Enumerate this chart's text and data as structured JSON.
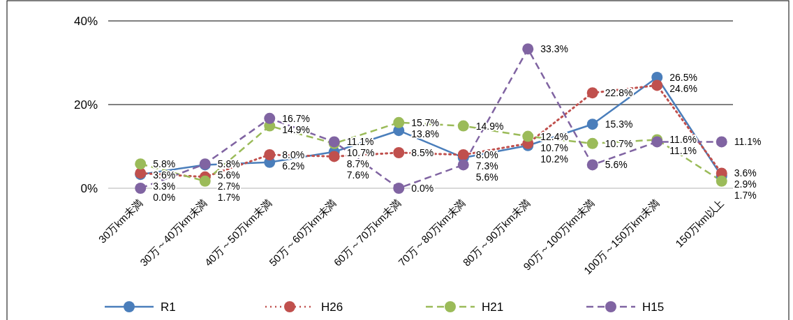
{
  "chart_data": {
    "type": "line",
    "categories": [
      "30万km未満",
      "30万～40万km未満",
      "40万～50万km未満",
      "50万～60万km未満",
      "60万～70万km未満",
      "70万～80万km未満",
      "80万～90万km未満",
      "90万～100万km未満",
      "100万～150万km未満",
      "150万km以上"
    ],
    "series": [
      {
        "name": "R1",
        "color": "#4a7ebb",
        "line_style": "solid",
        "values": [
          3.3,
          5.6,
          6.2,
          8.7,
          13.8,
          7.3,
          10.2,
          15.3,
          26.5,
          2.9
        ],
        "value_labels": [
          "3.3%",
          "5.6%",
          "6.2%",
          "8.7%",
          "13.8%",
          "7.3%",
          "10.2%",
          "15.3%",
          "26.5%",
          "2.9%"
        ]
      },
      {
        "name": "H26",
        "color": "#c0504d",
        "line_style": "dotted",
        "values": [
          3.6,
          2.7,
          8.0,
          7.6,
          8.5,
          8.0,
          10.7,
          22.8,
          24.6,
          3.6
        ],
        "value_labels": [
          "3.6%",
          "2.7%",
          "8.0%",
          "7.6%",
          "8.5%",
          "8.0%",
          "10.7%",
          "22.8%",
          "24.6%",
          "3.6%"
        ]
      },
      {
        "name": "H21",
        "color": "#9bbb59",
        "line_style": "dashed",
        "values": [
          5.8,
          1.7,
          14.9,
          10.7,
          15.7,
          14.9,
          12.4,
          10.7,
          11.6,
          1.7
        ],
        "value_labels": [
          "5.8%",
          "1.7%",
          "14.9%",
          "10.7%",
          "15.7%",
          "14.9%",
          "12.4%",
          "10.7%",
          "11.6%",
          "1.7%"
        ]
      },
      {
        "name": "H15",
        "color": "#8064a2",
        "line_style": "dashed",
        "values": [
          0.0,
          5.8,
          16.7,
          11.1,
          0.0,
          5.6,
          33.3,
          5.6,
          11.1,
          11.1
        ],
        "value_labels": [
          "0.0%",
          "5.8%",
          "16.7%",
          "11.1%",
          "0.0%",
          "5.6%",
          "33.3%",
          "5.6%",
          "11.1%",
          "11.1%"
        ]
      }
    ],
    "ylim": [
      0,
      40
    ],
    "yticks": [
      {
        "value": 0,
        "label": "0%"
      },
      {
        "value": 20,
        "label": "20%"
      },
      {
        "value": 40,
        "label": "40%"
      }
    ],
    "grid": "y",
    "legend": "bottom",
    "marker": "circle"
  }
}
